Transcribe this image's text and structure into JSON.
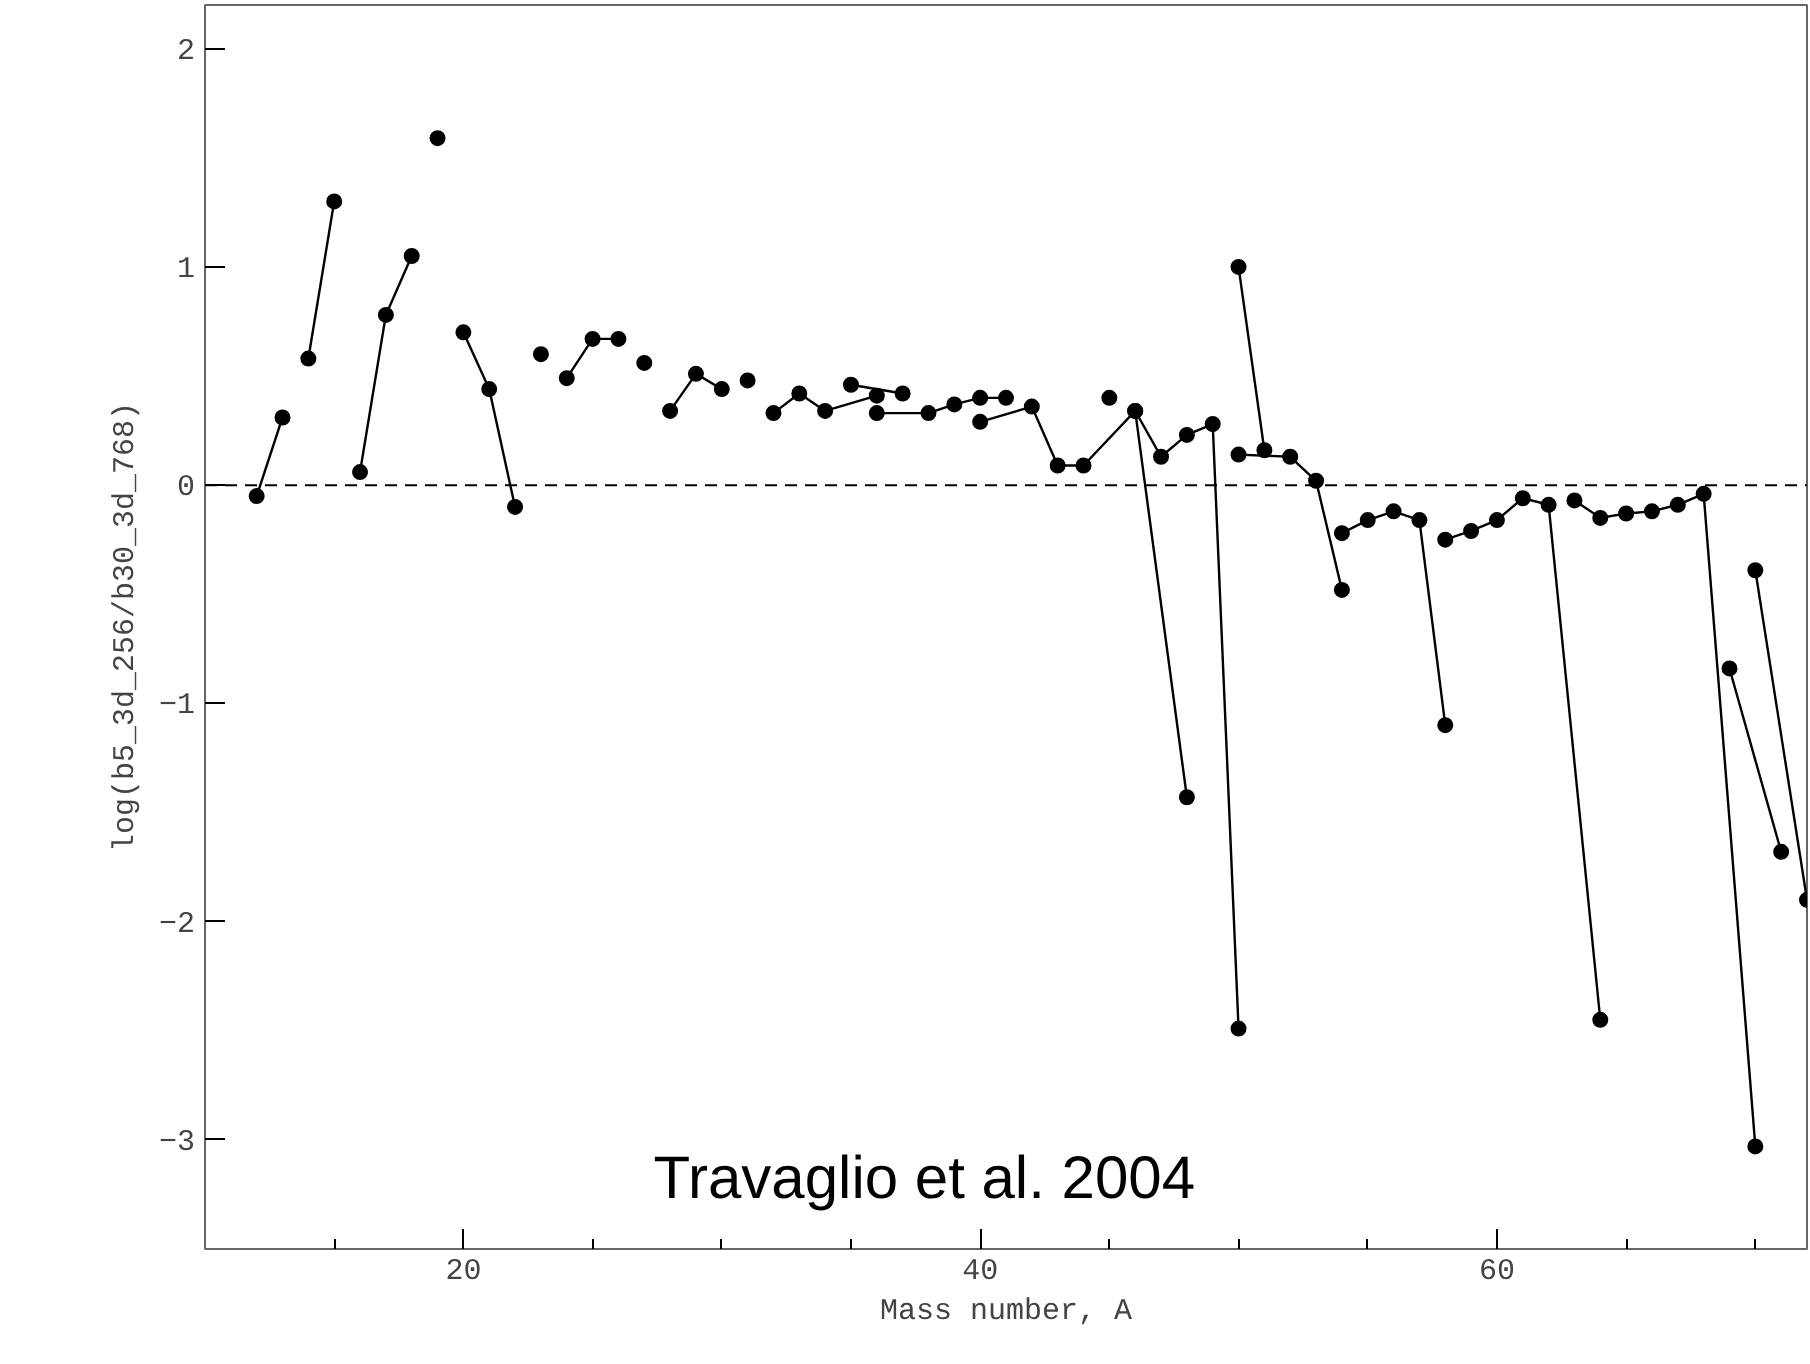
{
  "chart_data": {
    "type": "line",
    "xlabel": "Mass number, A",
    "ylabel": "log(b5_3d_256/b30_3d_768)",
    "annotations": [
      "Travaglio et al. 2004"
    ],
    "xlim": [
      10,
      72
    ],
    "ylim": [
      -3.5,
      2.2
    ],
    "xticks": [
      {
        "value": 10,
        "label": null
      },
      {
        "value": 15,
        "label": null
      },
      20,
      {
        "value": 25,
        "label": null
      },
      {
        "value": 30,
        "label": null
      },
      {
        "value": 35,
        "label": null
      },
      40,
      {
        "value": 45,
        "label": null
      },
      {
        "value": 50,
        "label": null
      },
      {
        "value": 55,
        "label": null
      },
      60,
      {
        "value": 65,
        "label": null
      },
      {
        "value": 70,
        "label": null
      }
    ],
    "yticks": [
      -3,
      -2,
      -1,
      0,
      1,
      2
    ],
    "marker": "circle",
    "line_style": "solid",
    "grid": false,
    "ref_lines": [
      {
        "axis": "y",
        "value": 0,
        "line_style": "dashed",
        "color": "#000000"
      }
    ],
    "series": [
      {
        "color": "#000000",
        "x": [
          12,
          13
        ],
        "values": [
          -0.05,
          0.31
        ]
      },
      {
        "color": "#000000",
        "x": [
          14,
          15
        ],
        "values": [
          0.58,
          1.3
        ]
      },
      {
        "color": "#000000",
        "x": [
          16,
          17,
          18
        ],
        "values": [
          0.06,
          0.78,
          1.05
        ]
      },
      {
        "color": "#000000",
        "x": [
          19
        ],
        "values": [
          1.59
        ]
      },
      {
        "color": "#000000",
        "x": [
          20,
          21,
          22
        ],
        "values": [
          0.7,
          0.44,
          -0.1
        ]
      },
      {
        "color": "#000000",
        "x": [
          23
        ],
        "values": [
          0.6
        ]
      },
      {
        "color": "#000000",
        "x": [
          24,
          25,
          26
        ],
        "values": [
          0.49,
          0.67,
          0.67
        ]
      },
      {
        "color": "#000000",
        "x": [
          27
        ],
        "values": [
          0.56
        ]
      },
      {
        "color": "#000000",
        "x": [
          28,
          29,
          30
        ],
        "values": [
          0.34,
          0.51,
          0.44
        ]
      },
      {
        "color": "#000000",
        "x": [
          31
        ],
        "values": [
          0.48
        ]
      },
      {
        "color": "#000000",
        "x": [
          32,
          33,
          34,
          36
        ],
        "values": [
          0.33,
          0.42,
          0.34,
          0.41
        ]
      },
      {
        "color": "#000000",
        "x": [
          35,
          37
        ],
        "values": [
          0.46,
          0.42
        ]
      },
      {
        "color": "#000000",
        "x": [
          36,
          38,
          39,
          40,
          41
        ],
        "values": [
          0.33,
          0.33,
          0.37,
          0.4,
          0.4
        ]
      },
      {
        "color": "#000000",
        "x": [
          40,
          42,
          43,
          44,
          46,
          48
        ],
        "values": [
          0.29,
          0.36,
          0.09,
          0.09,
          0.34,
          -1.43
        ]
      },
      {
        "color": "#000000",
        "x": [
          45
        ],
        "values": [
          0.4
        ]
      },
      {
        "color": "#000000",
        "x": [
          46,
          47,
          48,
          49,
          50
        ],
        "values": [
          0.34,
          0.13,
          0.23,
          0.28,
          -2.49
        ]
      },
      {
        "color": "#000000",
        "x": [
          50,
          51
        ],
        "values": [
          1.0,
          0.16
        ]
      },
      {
        "color": "#000000",
        "x": [
          50,
          52,
          53,
          54
        ],
        "values": [
          0.14,
          0.13,
          0.02,
          -0.48
        ]
      },
      {
        "color": "#000000",
        "x": [
          54,
          55,
          56,
          57,
          58
        ],
        "values": [
          -0.22,
          -0.16,
          -0.12,
          -0.16,
          -1.1
        ]
      },
      {
        "color": "#000000",
        "x": [
          58,
          59,
          60,
          61,
          62,
          64
        ],
        "values": [
          -0.25,
          -0.21,
          -0.16,
          -0.06,
          -0.09,
          -2.45
        ]
      },
      {
        "color": "#000000",
        "x": [
          63,
          64,
          65,
          66,
          67,
          68,
          70
        ],
        "values": [
          -0.07,
          -0.15,
          -0.13,
          -0.12,
          -0.09,
          -0.04,
          -3.03
        ]
      },
      {
        "color": "#000000",
        "x": [
          69,
          71
        ],
        "values": [
          -0.84,
          -1.68
        ]
      },
      {
        "color": "#000000",
        "x": [
          70,
          72
        ],
        "values": [
          -0.39,
          -1.9
        ]
      }
    ]
  }
}
